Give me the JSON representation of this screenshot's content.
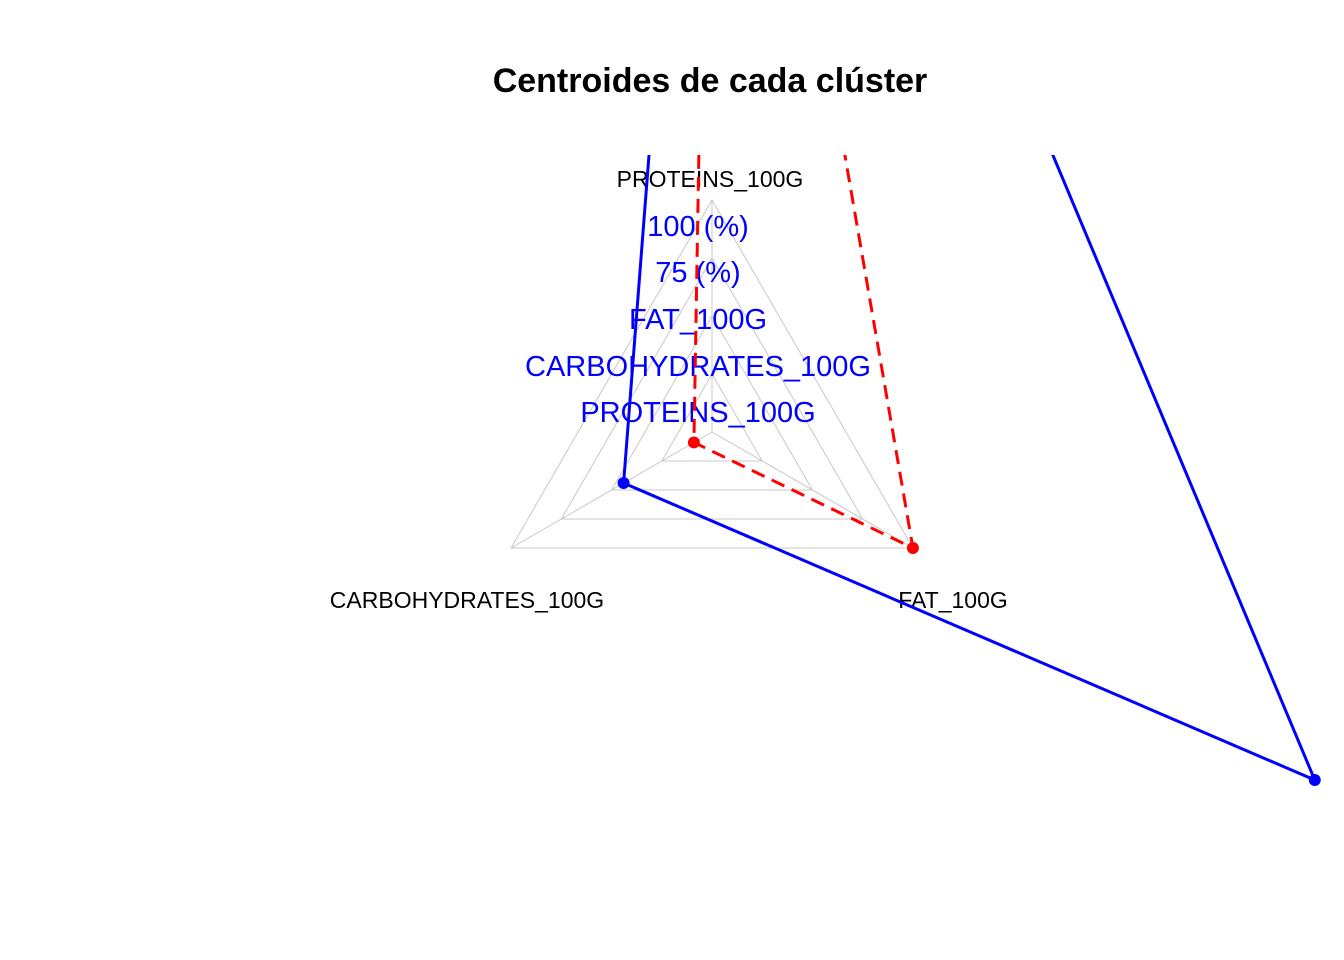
{
  "chart_data": {
    "type": "radar",
    "title": "Centroides de cada clúster",
    "axes": [
      "PROTEINS_100G",
      "FAT_100G",
      "CARBOHYDRATES_100G"
    ],
    "grid": true,
    "grid_levels": 4,
    "grid_color": "#c8c8c8",
    "overlay_text": [
      "100 (%)",
      "75 (%)",
      "FAT_100G",
      "CARBOHYDRATES_100G",
      "PROTEINS_100G"
    ],
    "overlay_text_color": "#0000ff",
    "series": [
      {
        "color": "#0000ff",
        "line_style": "solid",
        "values": [
          4.7,
          3.0,
          0.44
        ]
      },
      {
        "color": "#ff0000",
        "line_style": "dashed",
        "values": [
          4.5,
          1.0,
          0.09
        ]
      }
    ]
  }
}
